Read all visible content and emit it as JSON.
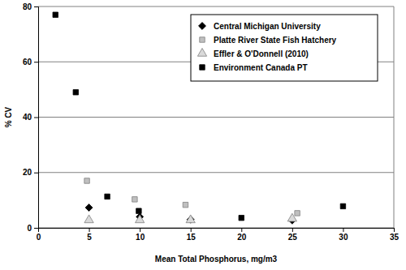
{
  "chart_data": {
    "type": "scatter",
    "x_label": "Mean Total Phosphorus, mg/m3",
    "y_label": "% CV",
    "xlim": [
      0,
      35
    ],
    "xticks": [
      0,
      5,
      10,
      15,
      20,
      25,
      30,
      35
    ],
    "ylim": [
      0,
      80
    ],
    "yticks": [
      0,
      20,
      40,
      60,
      80
    ],
    "grid": true,
    "legend": "upper right",
    "series": [
      {
        "name": "Central Michigan University",
        "color": "#000000",
        "marker": "diamond",
        "x": [
          5,
          10,
          15,
          25
        ],
        "values": [
          7.3,
          4,
          3,
          2.7
        ]
      },
      {
        "name": "Platte River State Fish Hatchery",
        "color": "#bfbfbf",
        "marker": "square",
        "x": [
          4.8,
          9.5,
          14.5,
          25.5
        ],
        "values": [
          17,
          10.3,
          8.3,
          5.3
        ]
      },
      {
        "name": "Effler & O'Donnell (2010)",
        "color": "#d9d9d9",
        "marker": "triangle",
        "x": [
          5,
          10,
          15,
          25
        ],
        "values": [
          2.8,
          2.8,
          2.8,
          3.3
        ]
      },
      {
        "name": "Environment Canada PT",
        "color": "#000000",
        "marker": "square",
        "x": [
          1.7,
          3.7,
          6.8,
          9.9,
          20,
          30
        ],
        "values": [
          77,
          49,
          11.3,
          6.1,
          3.6,
          7.8
        ]
      }
    ]
  }
}
